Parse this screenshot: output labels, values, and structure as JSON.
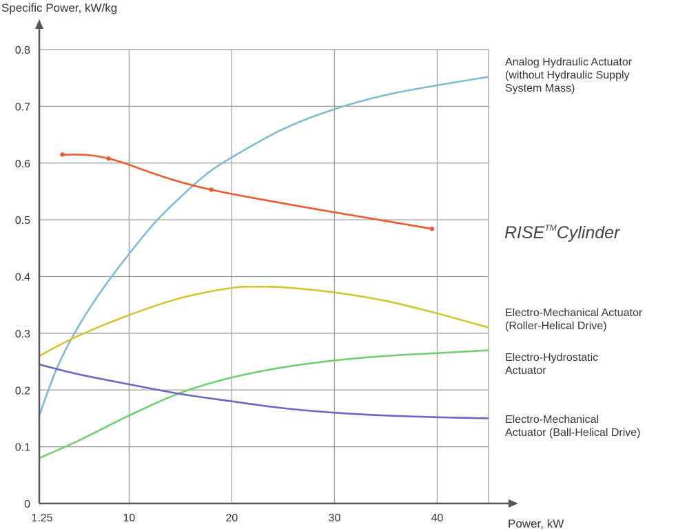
{
  "chart_data": {
    "type": "line",
    "xlabel": "Power, kW",
    "ylabel": "Specific Power, kW/kg",
    "xlim": [
      1.25,
      45
    ],
    "ylim": [
      0,
      0.8
    ],
    "x_ticks": [
      {
        "value": 1.25,
        "label": "1.25"
      },
      {
        "value": 10,
        "label": "10"
      },
      {
        "value": 20,
        "label": "20"
      },
      {
        "value": 30,
        "label": "30"
      },
      {
        "value": 40,
        "label": "40"
      }
    ],
    "y_ticks": [
      {
        "value": 0,
        "label": "0"
      },
      {
        "value": 0.1,
        "label": "0.1"
      },
      {
        "value": 0.2,
        "label": "0.2"
      },
      {
        "value": 0.3,
        "label": "0.3"
      },
      {
        "value": 0.4,
        "label": "0.4"
      },
      {
        "value": 0.5,
        "label": "0.5"
      },
      {
        "value": 0.6,
        "label": "0.6"
      },
      {
        "value": 0.7,
        "label": "0.7"
      },
      {
        "value": 0.8,
        "label": "0.8"
      }
    ],
    "grid": true,
    "legend": "inline labels at right",
    "series": [
      {
        "name": "Analog Hydraulic Actuator (without Hydraulic Supply System Mass)",
        "label_lines": [
          "Analog Hydraulic Actuator",
          "(without Hydraulic Supply",
          "System Mass)"
        ],
        "color": "#7bbbd4",
        "x": [
          1.25,
          3,
          5,
          7.5,
          10,
          12.5,
          15,
          17.5,
          20,
          25,
          30,
          35,
          40,
          45
        ],
        "y": [
          0.155,
          0.24,
          0.31,
          0.38,
          0.44,
          0.495,
          0.54,
          0.58,
          0.61,
          0.66,
          0.695,
          0.72,
          0.737,
          0.752
        ],
        "markers": false
      },
      {
        "name": "RISE™Cylinder",
        "label_main": "RISE",
        "label_tm": "TM",
        "label_rest": "Cylinder",
        "color": "#f05a28",
        "x": [
          3.5,
          8,
          18,
          39.5
        ],
        "y": [
          0.615,
          0.608,
          0.553,
          0.484
        ],
        "marker_x": [
          3.5,
          8,
          18,
          39.5
        ],
        "marker_y": [
          0.615,
          0.608,
          0.553,
          0.484
        ],
        "markers": true
      },
      {
        "name": "Electro-Mechanical Actuator (Roller-Helical Drive)",
        "label_lines": [
          "Electro-Mechanical Actuator",
          "(Roller-Helical Drive)"
        ],
        "color": "#d4c22e",
        "x": [
          1.25,
          5,
          10,
          15,
          20,
          22.5,
          25,
          30,
          35,
          40,
          45
        ],
        "y": [
          0.26,
          0.295,
          0.332,
          0.362,
          0.38,
          0.382,
          0.381,
          0.372,
          0.357,
          0.335,
          0.31
        ],
        "markers": false
      },
      {
        "name": "Electro-Hydrostatic Actuator",
        "label_lines": [
          "Electro-Hydrostatic",
          "Actuator"
        ],
        "color": "#6dd06d",
        "x": [
          1.25,
          5,
          10,
          15,
          20,
          25,
          30,
          35,
          40,
          45
        ],
        "y": [
          0.08,
          0.11,
          0.155,
          0.195,
          0.222,
          0.24,
          0.252,
          0.26,
          0.265,
          0.27
        ],
        "markers": false
      },
      {
        "name": "Electro-Mechanical Actuator (Ball-Helical Drive)",
        "label_lines": [
          "Electro-Mechanical",
          "Actuator (Ball-Helical Drive)"
        ],
        "color": "#6a63c8",
        "x": [
          1.25,
          5,
          10,
          15,
          20,
          25,
          30,
          35,
          40,
          45
        ],
        "y": [
          0.245,
          0.228,
          0.21,
          0.193,
          0.18,
          0.168,
          0.16,
          0.155,
          0.152,
          0.15
        ],
        "markers": false
      }
    ]
  }
}
